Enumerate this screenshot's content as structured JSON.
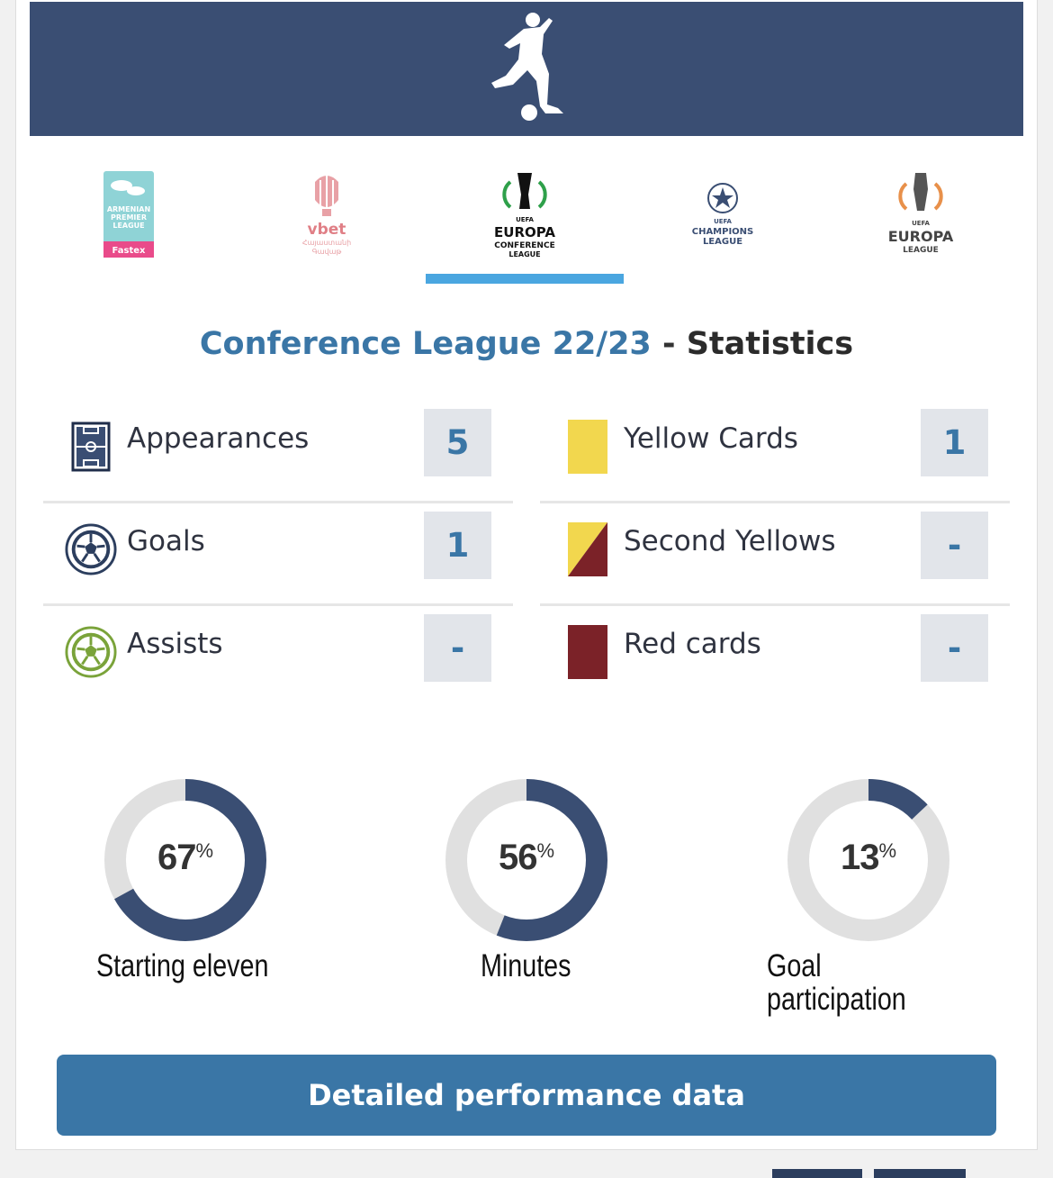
{
  "banner": {
    "icon": "soccer-player-icon",
    "color": "#3a4e73"
  },
  "competitions": [
    {
      "id": "armenian-premier-league",
      "logo_text": [
        "ARMENIAN",
        "PREMIER",
        "LEAGUE"
      ],
      "sponsor": "Fastex",
      "active": false
    },
    {
      "id": "vbet-cup",
      "logo_text": [
        "vbet",
        "Հայաստանի",
        "Գավաթ"
      ],
      "active": false
    },
    {
      "id": "europa-conference-league",
      "logo_text": [
        "UEFA",
        "EUROPA",
        "CONFERENCE",
        "LEAGUE"
      ],
      "active": true
    },
    {
      "id": "champions-league",
      "logo_text": [
        "UEFA",
        "CHAMPIONS",
        "LEAGUE"
      ],
      "active": false
    },
    {
      "id": "europa-league",
      "logo_text": [
        "UEFA",
        "EUROPA",
        "LEAGUE"
      ],
      "active": false
    }
  ],
  "heading": {
    "league": "Conference League 22/23",
    "separator": " - ",
    "suffix": "Statistics"
  },
  "stats": {
    "appearances": {
      "label": "Appearances",
      "value": "5"
    },
    "goals": {
      "label": "Goals",
      "value": "1"
    },
    "assists": {
      "label": "Assists",
      "value": "-"
    },
    "yellow_cards": {
      "label": "Yellow Cards",
      "value": "1"
    },
    "second_yellows": {
      "label": "Second Yellows",
      "value": "-"
    },
    "red_cards": {
      "label": "Red cards",
      "value": "-"
    }
  },
  "colors": {
    "accent": "#3a76a6",
    "navy": "#3a4e73",
    "yellow": "#f2d74e",
    "red": "#7b2228",
    "tab_underline": "#4aa6e0",
    "assist_green": "#7aa33a"
  },
  "donuts": [
    {
      "key": "starting_eleven",
      "value": 67,
      "unit": "%",
      "label": "Starting eleven"
    },
    {
      "key": "minutes",
      "value": 56,
      "unit": "%",
      "label": "Minutes"
    },
    {
      "key": "goal_participation",
      "value": 13,
      "unit": "%",
      "label_lines": [
        "Goal",
        "participation"
      ]
    }
  ],
  "button": {
    "label": "Detailed performance data"
  }
}
